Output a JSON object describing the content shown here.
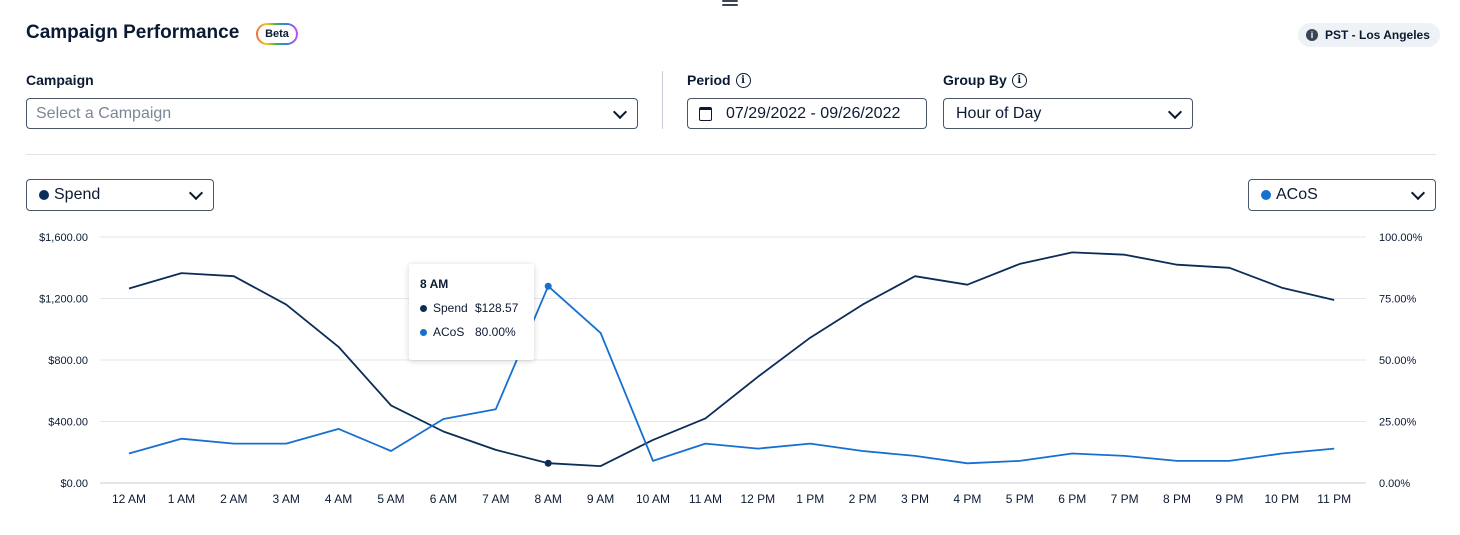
{
  "header": {
    "title": "Campaign Performance",
    "badge": "Beta",
    "timezone": "PST - Los Angeles",
    "timezone_icon": "info-icon"
  },
  "filters": {
    "campaign_label": "Campaign",
    "campaign_placeholder": "Select a Campaign",
    "period_label": "Period",
    "period_value": "07/29/2022 - 09/26/2022",
    "group_by_label": "Group By",
    "group_by_value": "Hour of Day"
  },
  "metric_selectors": {
    "left": "Spend",
    "right": "ACoS"
  },
  "colors": {
    "spend": "#0b2d57",
    "acos": "#1670d0",
    "grid": "#e3e6ea",
    "text": "#0b1a33"
  },
  "tooltip": {
    "title": "8 AM",
    "rows": [
      {
        "name": "Spend",
        "value": "$128.57"
      },
      {
        "name": "ACoS",
        "value": "80.00%"
      }
    ]
  },
  "chart_data": {
    "type": "line",
    "categories": [
      "12 AM",
      "1 AM",
      "2 AM",
      "3 AM",
      "4 AM",
      "5 AM",
      "6 AM",
      "7 AM",
      "8 AM",
      "9 AM",
      "10 AM",
      "11 AM",
      "12 PM",
      "1 PM",
      "2 PM",
      "3 PM",
      "4 PM",
      "5 PM",
      "6 PM",
      "7 PM",
      "8 PM",
      "9 PM",
      "10 PM",
      "11 PM"
    ],
    "series": [
      {
        "name": "Spend",
        "axis": "left",
        "values": [
          1265,
          1365,
          1345,
          1160,
          885,
          505,
          335,
          215,
          128.57,
          110,
          280,
          420,
          690,
          945,
          1160,
          1345,
          1290,
          1425,
          1500,
          1485,
          1420,
          1400,
          1270,
          1190
        ]
      },
      {
        "name": "ACoS",
        "axis": "right",
        "values": [
          12,
          18,
          16,
          16,
          22,
          13,
          26,
          30,
          80,
          61,
          9,
          16,
          14,
          16,
          13,
          11,
          8,
          9,
          12,
          11,
          9,
          9,
          12,
          14
        ]
      }
    ],
    "y_left": {
      "min": 0,
      "max": 1600,
      "ticks": [
        "$0.00",
        "$400.00",
        "$800.00",
        "$1,200.00",
        "$1,600.00"
      ],
      "tick_values": [
        0,
        400,
        800,
        1200,
        1600
      ]
    },
    "y_right": {
      "min": 0,
      "max": 100,
      "ticks": [
        "0.00%",
        "25.00%",
        "50.00%",
        "75.00%",
        "100.00%"
      ],
      "tick_values": [
        0,
        25,
        50,
        75,
        100
      ]
    },
    "highlight_index": 8,
    "grid": true
  }
}
